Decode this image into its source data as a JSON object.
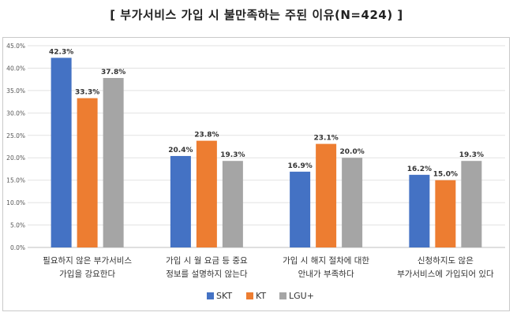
{
  "chart_data": {
    "type": "bar",
    "title": "[ 부가서비스 가입 시 불만족하는 주된 이유(N=424) ]",
    "categories": [
      [
        "필요하지 않은 부가서비스",
        "가입을 강요한다"
      ],
      [
        "가입 시 월 요금 등 중요",
        "정보를 설명하지 않는다"
      ],
      [
        "가입 시 해지 절차에 대한",
        "안내가 부족하다"
      ],
      [
        "신청하지도 않은",
        "부가서비스에 가입되어 있다"
      ]
    ],
    "series": [
      {
        "name": "SKT",
        "color": "#4472c4",
        "values": [
          42.3,
          20.4,
          16.9,
          16.2
        ],
        "labels": [
          "42.3%",
          "20.4%",
          "16.9%",
          "16.2%"
        ]
      },
      {
        "name": "KT",
        "color": "#ed7d31",
        "values": [
          33.3,
          23.8,
          23.1,
          15.0
        ],
        "labels": [
          "33.3%",
          "23.8%",
          "23.1%",
          "15.0%"
        ]
      },
      {
        "name": "LGU+",
        "color": "#a5a5a5",
        "values": [
          37.8,
          19.3,
          20.0,
          19.3
        ],
        "labels": [
          "37.8%",
          "19.3%",
          "20.0%",
          "19.3%"
        ]
      }
    ],
    "ylim": [
      0,
      45
    ],
    "yticks": [
      0,
      5,
      10,
      15,
      20,
      25,
      30,
      35,
      40,
      45
    ],
    "ytick_labels": [
      "0.0%",
      "5.0%",
      "10.0%",
      "15.0%",
      "20.0%",
      "25.0%",
      "30.0%",
      "35.0%",
      "40.0%",
      "45.0%"
    ],
    "grid": true,
    "legend_position": "bottom"
  }
}
